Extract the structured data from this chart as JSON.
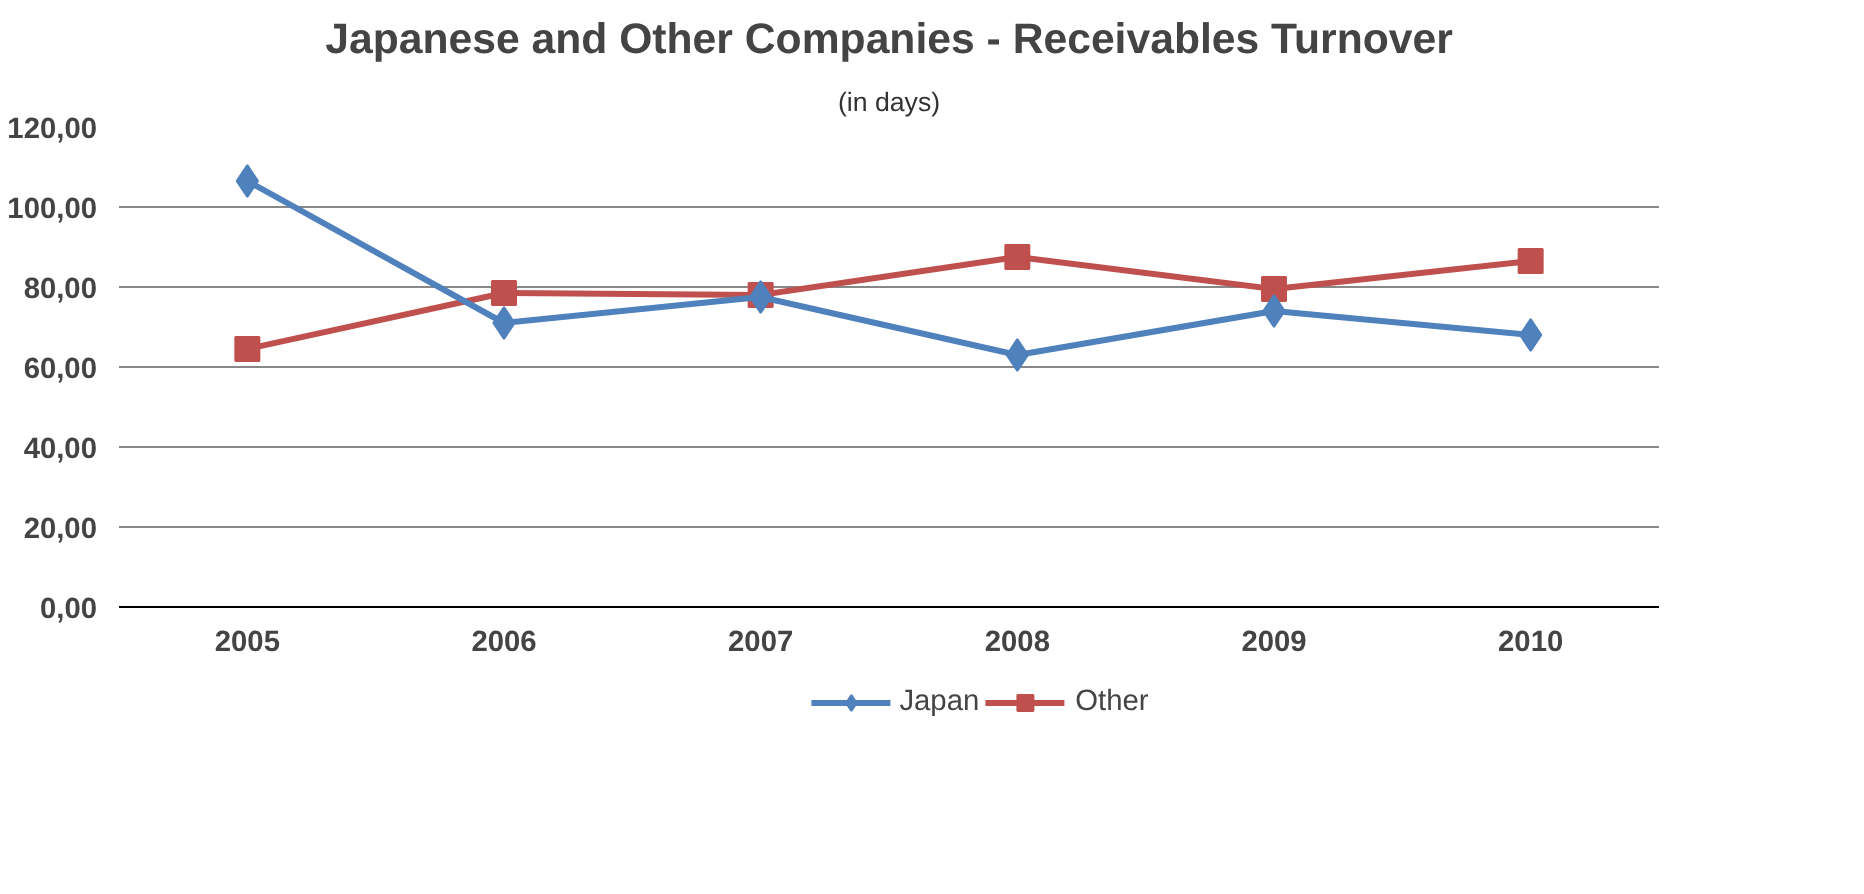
{
  "chart_data": {
    "type": "line",
    "title": "Japanese and Other Companies - Receivables Turnover",
    "subtitle": "(in days)",
    "categories": [
      "2005",
      "2006",
      "2007",
      "2008",
      "2009",
      "2010"
    ],
    "series": [
      {
        "name": "Japan",
        "color": "#4f81bd",
        "marker": "diamond",
        "values": [
          106.5,
          71.0,
          77.5,
          63.0,
          74.0,
          68.0
        ]
      },
      {
        "name": "Other",
        "color": "#c0504d",
        "marker": "square",
        "values": [
          64.5,
          78.5,
          78.0,
          87.5,
          79.5,
          86.5
        ]
      }
    ],
    "ylim": [
      0,
      120
    ],
    "yticks": [
      {
        "value": 0,
        "label": "0,00"
      },
      {
        "value": 20,
        "label": "20,00"
      },
      {
        "value": 40,
        "label": "40,00"
      },
      {
        "value": 60,
        "label": "60,00"
      },
      {
        "value": 80,
        "label": "80,00"
      },
      {
        "value": 100,
        "label": "100,00"
      },
      {
        "value": 120,
        "label": "120,00"
      }
    ],
    "grid": "y",
    "legend": "bottom",
    "line_style": "solid"
  }
}
